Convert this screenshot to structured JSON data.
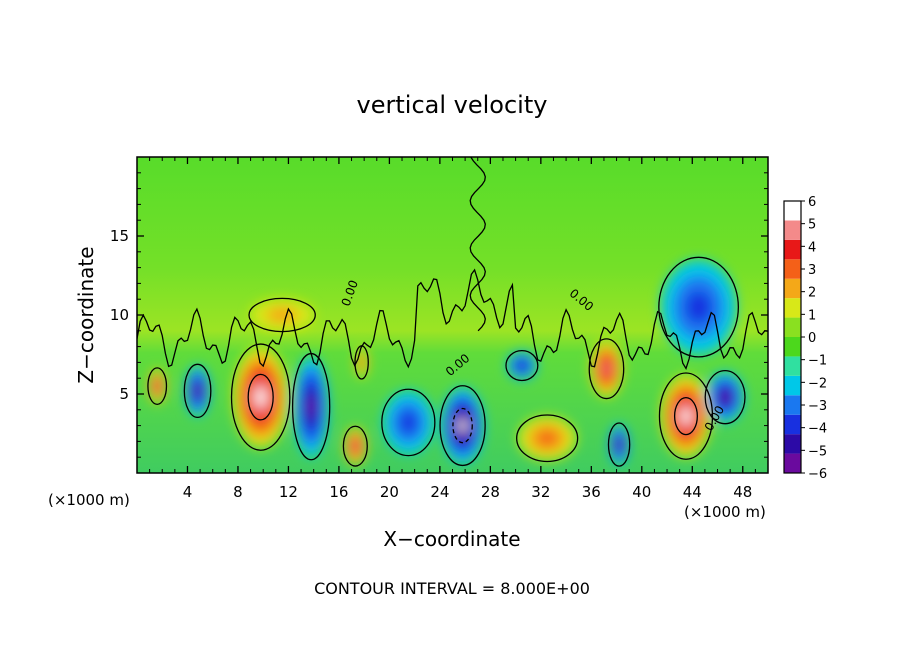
{
  "chart_data": {
    "type": "heatmap",
    "title": "vertical velocity",
    "xlabel": "X−coordinate",
    "ylabel": "Z−coordinate",
    "x_unit_left": "(×1000 m)",
    "x_unit_right": "(×1000 m)",
    "xlim": [
      0,
      50
    ],
    "ylim": [
      0,
      20
    ],
    "x_ticks": [
      4,
      8,
      12,
      16,
      20,
      24,
      28,
      32,
      36,
      40,
      44,
      48
    ],
    "y_ticks": [
      5,
      10,
      15
    ],
    "footer": "CONTOUR INTERVAL = 8.000E+00",
    "contour_label": "0.00",
    "colorbar": {
      "ticks": [
        "6",
        "5",
        "4",
        "3",
        "2",
        "1",
        "0",
        "−1",
        "−2",
        "−3",
        "−4",
        "−5",
        "−6"
      ],
      "range": [
        -6,
        6
      ],
      "colors": [
        "#6a0a9e",
        "#2c0aa6",
        "#1830e0",
        "#1a78f0",
        "#00c8e8",
        "#30e0a0",
        "#4cd81c",
        "#8ae020",
        "#d8e818",
        "#f4a818",
        "#f46018",
        "#e81818",
        "#f48a8a",
        "#ffffff"
      ]
    },
    "features": [
      {
        "x": 1.6,
        "z": 5.5,
        "w": 0.7,
        "rz": 1.1,
        "value": 6
      },
      {
        "x": 4.8,
        "z": 5.2,
        "w": 1.0,
        "rz": 1.6,
        "value": -6
      },
      {
        "x": 9.8,
        "z": 4.8,
        "w": 2.2,
        "rz": 3.2,
        "value": 8
      },
      {
        "x": 13.8,
        "z": 4.2,
        "w": 1.4,
        "rz": 3.2,
        "value": -6
      },
      {
        "x": 17.3,
        "z": 1.7,
        "w": 0.9,
        "rz": 1.2,
        "value": 7
      },
      {
        "x": 17.8,
        "z": 7.0,
        "w": 0.5,
        "rz": 1.0,
        "value": 4
      },
      {
        "x": 21.5,
        "z": 3.2,
        "w": 2.0,
        "rz": 2.0,
        "value": -4
      },
      {
        "x": 25.8,
        "z": 3.0,
        "w": 1.7,
        "rz": 2.4,
        "value": -8
      },
      {
        "x": 30.5,
        "z": 6.8,
        "w": 1.2,
        "rz": 0.9,
        "value": -5
      },
      {
        "x": 32.5,
        "z": 2.2,
        "w": 2.3,
        "rz": 1.4,
        "value": 4
      },
      {
        "x": 37.2,
        "z": 6.6,
        "w": 1.3,
        "rz": 1.8,
        "value": 7
      },
      {
        "x": 38.2,
        "z": 1.8,
        "w": 0.8,
        "rz": 1.3,
        "value": -7
      },
      {
        "x": 43.5,
        "z": 3.6,
        "w": 2.0,
        "rz": 2.6,
        "value": 8
      },
      {
        "x": 46.6,
        "z": 4.8,
        "w": 1.5,
        "rz": 1.6,
        "value": -7
      },
      {
        "x": 44.5,
        "z": 10.5,
        "w": 3.0,
        "rz": 3.0,
        "value": -4
      },
      {
        "x": 11.5,
        "z": 10.0,
        "w": 2.5,
        "rz": 1.0,
        "value": 3
      }
    ]
  }
}
